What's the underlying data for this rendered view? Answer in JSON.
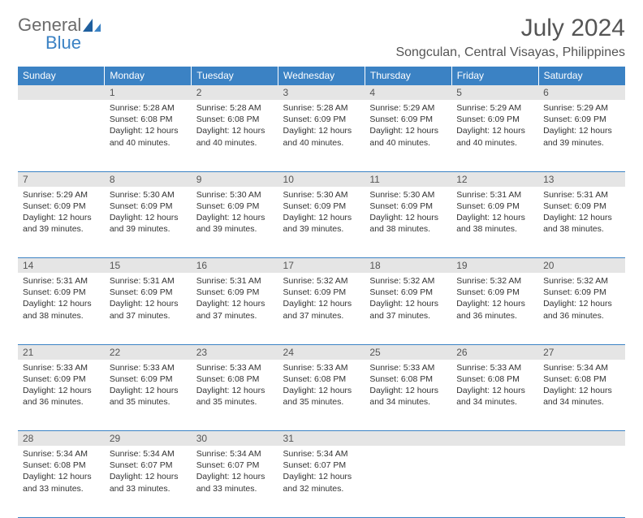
{
  "logo": {
    "general": "General",
    "blue": "Blue"
  },
  "title": "July 2024",
  "location": "Songculan, Central Visayas, Philippines",
  "weekdays": [
    "Sunday",
    "Monday",
    "Tuesday",
    "Wednesday",
    "Thursday",
    "Friday",
    "Saturday"
  ],
  "colors": {
    "header_bg": "#3b82c4",
    "header_text": "#ffffff",
    "daynum_bg": "#e5e5e5",
    "border": "#3b82c4",
    "logo_gray": "#6b6b6b",
    "logo_blue": "#3b82c4",
    "body_text": "#333333"
  },
  "weeks": [
    {
      "nums": [
        "",
        "1",
        "2",
        "3",
        "4",
        "5",
        "6"
      ],
      "cells": [
        {
          "sunrise": "",
          "sunset": "",
          "daylight": ""
        },
        {
          "sunrise": "Sunrise: 5:28 AM",
          "sunset": "Sunset: 6:08 PM",
          "daylight": "Daylight: 12 hours and 40 minutes."
        },
        {
          "sunrise": "Sunrise: 5:28 AM",
          "sunset": "Sunset: 6:08 PM",
          "daylight": "Daylight: 12 hours and 40 minutes."
        },
        {
          "sunrise": "Sunrise: 5:28 AM",
          "sunset": "Sunset: 6:09 PM",
          "daylight": "Daylight: 12 hours and 40 minutes."
        },
        {
          "sunrise": "Sunrise: 5:29 AM",
          "sunset": "Sunset: 6:09 PM",
          "daylight": "Daylight: 12 hours and 40 minutes."
        },
        {
          "sunrise": "Sunrise: 5:29 AM",
          "sunset": "Sunset: 6:09 PM",
          "daylight": "Daylight: 12 hours and 40 minutes."
        },
        {
          "sunrise": "Sunrise: 5:29 AM",
          "sunset": "Sunset: 6:09 PM",
          "daylight": "Daylight: 12 hours and 39 minutes."
        }
      ]
    },
    {
      "nums": [
        "7",
        "8",
        "9",
        "10",
        "11",
        "12",
        "13"
      ],
      "cells": [
        {
          "sunrise": "Sunrise: 5:29 AM",
          "sunset": "Sunset: 6:09 PM",
          "daylight": "Daylight: 12 hours and 39 minutes."
        },
        {
          "sunrise": "Sunrise: 5:30 AM",
          "sunset": "Sunset: 6:09 PM",
          "daylight": "Daylight: 12 hours and 39 minutes."
        },
        {
          "sunrise": "Sunrise: 5:30 AM",
          "sunset": "Sunset: 6:09 PM",
          "daylight": "Daylight: 12 hours and 39 minutes."
        },
        {
          "sunrise": "Sunrise: 5:30 AM",
          "sunset": "Sunset: 6:09 PM",
          "daylight": "Daylight: 12 hours and 39 minutes."
        },
        {
          "sunrise": "Sunrise: 5:30 AM",
          "sunset": "Sunset: 6:09 PM",
          "daylight": "Daylight: 12 hours and 38 minutes."
        },
        {
          "sunrise": "Sunrise: 5:31 AM",
          "sunset": "Sunset: 6:09 PM",
          "daylight": "Daylight: 12 hours and 38 minutes."
        },
        {
          "sunrise": "Sunrise: 5:31 AM",
          "sunset": "Sunset: 6:09 PM",
          "daylight": "Daylight: 12 hours and 38 minutes."
        }
      ]
    },
    {
      "nums": [
        "14",
        "15",
        "16",
        "17",
        "18",
        "19",
        "20"
      ],
      "cells": [
        {
          "sunrise": "Sunrise: 5:31 AM",
          "sunset": "Sunset: 6:09 PM",
          "daylight": "Daylight: 12 hours and 38 minutes."
        },
        {
          "sunrise": "Sunrise: 5:31 AM",
          "sunset": "Sunset: 6:09 PM",
          "daylight": "Daylight: 12 hours and 37 minutes."
        },
        {
          "sunrise": "Sunrise: 5:31 AM",
          "sunset": "Sunset: 6:09 PM",
          "daylight": "Daylight: 12 hours and 37 minutes."
        },
        {
          "sunrise": "Sunrise: 5:32 AM",
          "sunset": "Sunset: 6:09 PM",
          "daylight": "Daylight: 12 hours and 37 minutes."
        },
        {
          "sunrise": "Sunrise: 5:32 AM",
          "sunset": "Sunset: 6:09 PM",
          "daylight": "Daylight: 12 hours and 37 minutes."
        },
        {
          "sunrise": "Sunrise: 5:32 AM",
          "sunset": "Sunset: 6:09 PM",
          "daylight": "Daylight: 12 hours and 36 minutes."
        },
        {
          "sunrise": "Sunrise: 5:32 AM",
          "sunset": "Sunset: 6:09 PM",
          "daylight": "Daylight: 12 hours and 36 minutes."
        }
      ]
    },
    {
      "nums": [
        "21",
        "22",
        "23",
        "24",
        "25",
        "26",
        "27"
      ],
      "cells": [
        {
          "sunrise": "Sunrise: 5:33 AM",
          "sunset": "Sunset: 6:09 PM",
          "daylight": "Daylight: 12 hours and 36 minutes."
        },
        {
          "sunrise": "Sunrise: 5:33 AM",
          "sunset": "Sunset: 6:09 PM",
          "daylight": "Daylight: 12 hours and 35 minutes."
        },
        {
          "sunrise": "Sunrise: 5:33 AM",
          "sunset": "Sunset: 6:08 PM",
          "daylight": "Daylight: 12 hours and 35 minutes."
        },
        {
          "sunrise": "Sunrise: 5:33 AM",
          "sunset": "Sunset: 6:08 PM",
          "daylight": "Daylight: 12 hours and 35 minutes."
        },
        {
          "sunrise": "Sunrise: 5:33 AM",
          "sunset": "Sunset: 6:08 PM",
          "daylight": "Daylight: 12 hours and 34 minutes."
        },
        {
          "sunrise": "Sunrise: 5:33 AM",
          "sunset": "Sunset: 6:08 PM",
          "daylight": "Daylight: 12 hours and 34 minutes."
        },
        {
          "sunrise": "Sunrise: 5:34 AM",
          "sunset": "Sunset: 6:08 PM",
          "daylight": "Daylight: 12 hours and 34 minutes."
        }
      ]
    },
    {
      "nums": [
        "28",
        "29",
        "30",
        "31",
        "",
        "",
        ""
      ],
      "cells": [
        {
          "sunrise": "Sunrise: 5:34 AM",
          "sunset": "Sunset: 6:08 PM",
          "daylight": "Daylight: 12 hours and 33 minutes."
        },
        {
          "sunrise": "Sunrise: 5:34 AM",
          "sunset": "Sunset: 6:07 PM",
          "daylight": "Daylight: 12 hours and 33 minutes."
        },
        {
          "sunrise": "Sunrise: 5:34 AM",
          "sunset": "Sunset: 6:07 PM",
          "daylight": "Daylight: 12 hours and 33 minutes."
        },
        {
          "sunrise": "Sunrise: 5:34 AM",
          "sunset": "Sunset: 6:07 PM",
          "daylight": "Daylight: 12 hours and 32 minutes."
        },
        {
          "sunrise": "",
          "sunset": "",
          "daylight": ""
        },
        {
          "sunrise": "",
          "sunset": "",
          "daylight": ""
        },
        {
          "sunrise": "",
          "sunset": "",
          "daylight": ""
        }
      ]
    }
  ]
}
